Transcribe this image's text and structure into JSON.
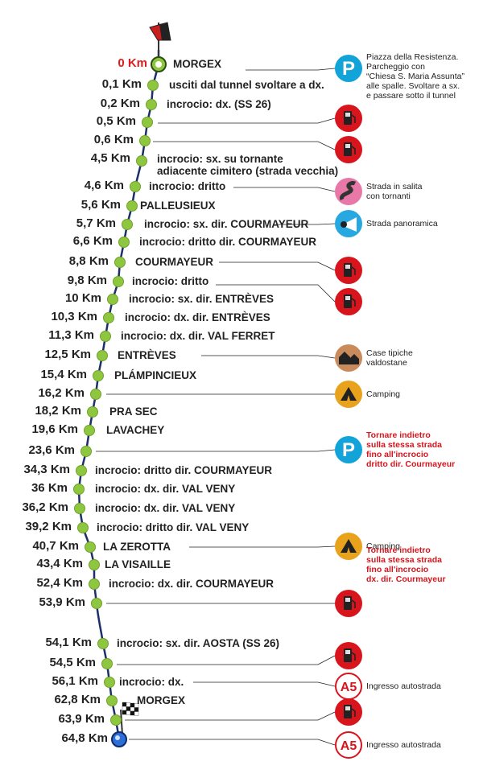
{
  "stops": [
    {
      "km": "0 Km",
      "desc": "MORGEX",
      "start": true
    },
    {
      "km": "0,1 Km",
      "desc": "usciti dal tunnel svoltare a dx."
    },
    {
      "km": "0,2 Km",
      "desc": "incrocio: dx. (SS 26)"
    },
    {
      "km": "0,5 Km",
      "desc": ""
    },
    {
      "km": "0,6 Km",
      "desc": ""
    },
    {
      "km": "4,5 Km",
      "desc": "incrocio: sx. su tornante\nadiacente cimitero (strada vecchia)"
    },
    {
      "km": "4,6 Km",
      "desc": "incrocio: dritto"
    },
    {
      "km": "5,6 Km",
      "desc": "PALLEUSIEUX"
    },
    {
      "km": "5,7 Km",
      "desc": "incrocio: sx. dir. COURMAYEUR"
    },
    {
      "km": "6,6 Km",
      "desc": "incrocio: dritto dir. COURMAYEUR"
    },
    {
      "km": "8,8 Km",
      "desc": "COURMAYEUR"
    },
    {
      "km": "9,8 Km",
      "desc": "incrocio: dritto"
    },
    {
      "km": "10 Km",
      "desc": "incrocio: sx. dir. ENTRÈVES"
    },
    {
      "km": "10,3 Km",
      "desc": "incrocio: dx. dir. ENTRÈVES"
    },
    {
      "km": "11,3 Km",
      "desc": "incrocio: dx. dir. VAL FERRET"
    },
    {
      "km": "12,5 Km",
      "desc": "ENTRÈVES"
    },
    {
      "km": "15,4 Km",
      "desc": "PLÁMPINCIEUX"
    },
    {
      "km": "16,2 Km",
      "desc": ""
    },
    {
      "km": "18,2 Km",
      "desc": "PRA SEC"
    },
    {
      "km": "19,6 Km",
      "desc": "LAVACHEY"
    },
    {
      "km": "23,6 Km",
      "desc": ""
    },
    {
      "km": "34,3 Km",
      "desc": "incrocio: dritto dir. COURMAYEUR"
    },
    {
      "km": "36 Km",
      "desc": "incrocio: dx. dir. VAL VENY"
    },
    {
      "km": "36,2 Km",
      "desc": "incrocio: dx. dir. VAL VENY"
    },
    {
      "km": "39,2 Km",
      "desc": "incrocio: dritto dir. VAL VENY"
    },
    {
      "km": "40,7 Km",
      "desc": "LA ZEROTTA"
    },
    {
      "km": "43,4 Km",
      "desc": "LA VISAILLE"
    },
    {
      "km": "52,4 Km",
      "desc": "incrocio: dx. dir. COURMAYEUR"
    },
    {
      "km": "53,9 Km",
      "desc": ""
    },
    {
      "km": "54,1 Km",
      "desc": "incrocio: sx. dir. AOSTA (SS 26)"
    },
    {
      "km": "54,5 Km",
      "desc": ""
    },
    {
      "km": "56,1 Km",
      "desc": "incrocio: dx."
    },
    {
      "km": "62,8 Km",
      "desc": "MORGEX"
    },
    {
      "km": "63,9 Km",
      "desc": ""
    },
    {
      "km": "64,8 Km",
      "desc": ""
    }
  ],
  "markers": [
    {
      "type": "parking",
      "text": "Piazza della Resistenza.\nParcheggio con\n“Chiesa S. Maria Assunta”\nalle spalle. Svoltare a sx.\ne passare sotto il tunnel",
      "red": false
    },
    {
      "type": "fuel",
      "text": "",
      "red": false
    },
    {
      "type": "fuel",
      "text": "",
      "red": false
    },
    {
      "type": "hairpin",
      "text": "Strada in salita\ncon tornanti",
      "red": false
    },
    {
      "type": "panoramic",
      "text": "Strada panoramica",
      "red": false
    },
    {
      "type": "fuel",
      "text": "",
      "red": false
    },
    {
      "type": "fuel",
      "text": "",
      "red": false
    },
    {
      "type": "houses",
      "text": "Case tipiche\nvaldostane",
      "red": false
    },
    {
      "type": "camping",
      "text": "Camping",
      "red": false
    },
    {
      "type": "parking",
      "text": "Tornare indietro\nsulla stessa strada\nfino all'incrocio\ndritto dir. Courmayeur",
      "red": true
    },
    {
      "type": "camping",
      "text": "Camping",
      "red": false
    },
    {
      "type": "none",
      "text": "Tornare indietro\nsulla stessa strada\nfino all'incrocio\ndx. dir. Courmayeur",
      "red": true
    },
    {
      "type": "fuel",
      "text": "",
      "red": false
    },
    {
      "type": "fuel",
      "text": "",
      "red": false
    },
    {
      "type": "a5",
      "text": "Ingresso autostrada",
      "red": false,
      "label": "A5"
    },
    {
      "type": "fuel",
      "text": "",
      "red": false
    },
    {
      "type": "a5",
      "text": "Ingresso autostrada",
      "red": false,
      "label": "A5"
    }
  ],
  "colors": {
    "route": "#1c2f6b",
    "dot": "#8fc63f",
    "dot_stroke": "#6fa22c",
    "start_km": "#e01c1c",
    "parking": "#12a3d8",
    "fuel": "#d8141c",
    "camping": "#e8a21c",
    "hairpin": "#e878a8",
    "panoramic": "#28a8e0",
    "houses": "#c98a5c"
  }
}
